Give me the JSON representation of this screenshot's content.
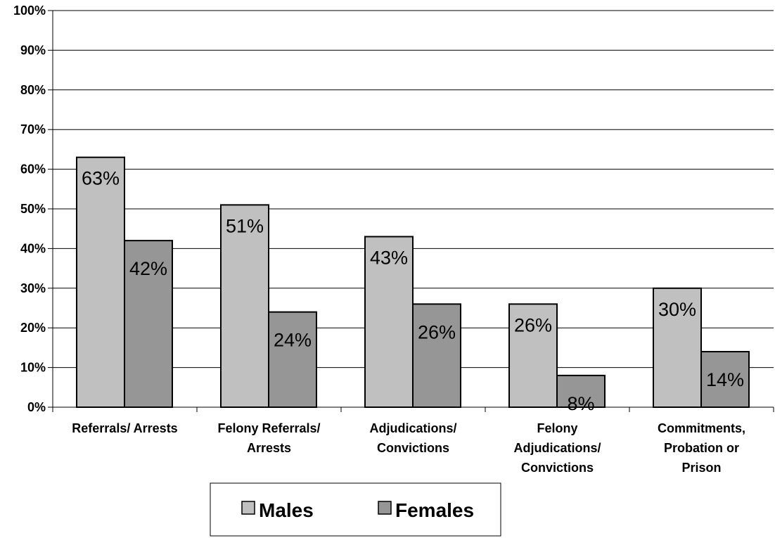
{
  "chart_data": {
    "type": "bar",
    "categories": [
      [
        "Referrals/ Arrests"
      ],
      [
        "Felony Referrals/",
        "Arrests"
      ],
      [
        "Adjudications/",
        "Convictions"
      ],
      [
        "Felony",
        "Adjudications/",
        "Convictions"
      ],
      [
        "Commitments,",
        "Probation or",
        "Prison"
      ]
    ],
    "series": [
      {
        "name": "Males",
        "values": [
          63,
          51,
          43,
          26,
          30
        ],
        "labels": [
          "63%",
          "51%",
          "43%",
          "26%",
          "30%"
        ],
        "color": "#c0c0c0"
      },
      {
        "name": "Females",
        "values": [
          42,
          24,
          26,
          8,
          14
        ],
        "labels": [
          "42%",
          "24%",
          "26%",
          "8%",
          "14%"
        ],
        "color": "#969696"
      }
    ],
    "y_ticks": [
      "0%",
      "10%",
      "20%",
      "30%",
      "40%",
      "50%",
      "60%",
      "70%",
      "80%",
      "90%",
      "100%"
    ],
    "ylim": [
      0,
      100
    ],
    "grid": true,
    "legend_position": "bottom"
  }
}
